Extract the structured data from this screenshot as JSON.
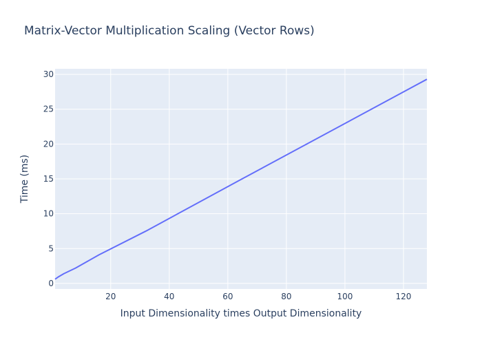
{
  "chart_data": {
    "type": "line",
    "title": "Matrix-Vector Multiplication Scaling (Vector Rows)",
    "xlabel": "Input Dimensionality times Output Dimensionality",
    "ylabel": "Time (ms)",
    "xlim": [
      1,
      128
    ],
    "ylim": [
      -0.8,
      30.8
    ],
    "xticks": [
      20,
      40,
      60,
      80,
      100,
      120
    ],
    "yticks": [
      0,
      5,
      10,
      15,
      20,
      25,
      30
    ],
    "grid": true,
    "series": [
      {
        "color": "#636efa",
        "x": [
          1,
          2,
          4,
          8,
          16,
          32,
          64,
          128
        ],
        "y": [
          0.6,
          0.9,
          1.4,
          2.2,
          4.1,
          7.5,
          14.8,
          29.3
        ]
      }
    ]
  },
  "colors": {
    "plot_background": "#e5ecf6",
    "grid": "#ffffff",
    "text": "#2a3f5f"
  }
}
